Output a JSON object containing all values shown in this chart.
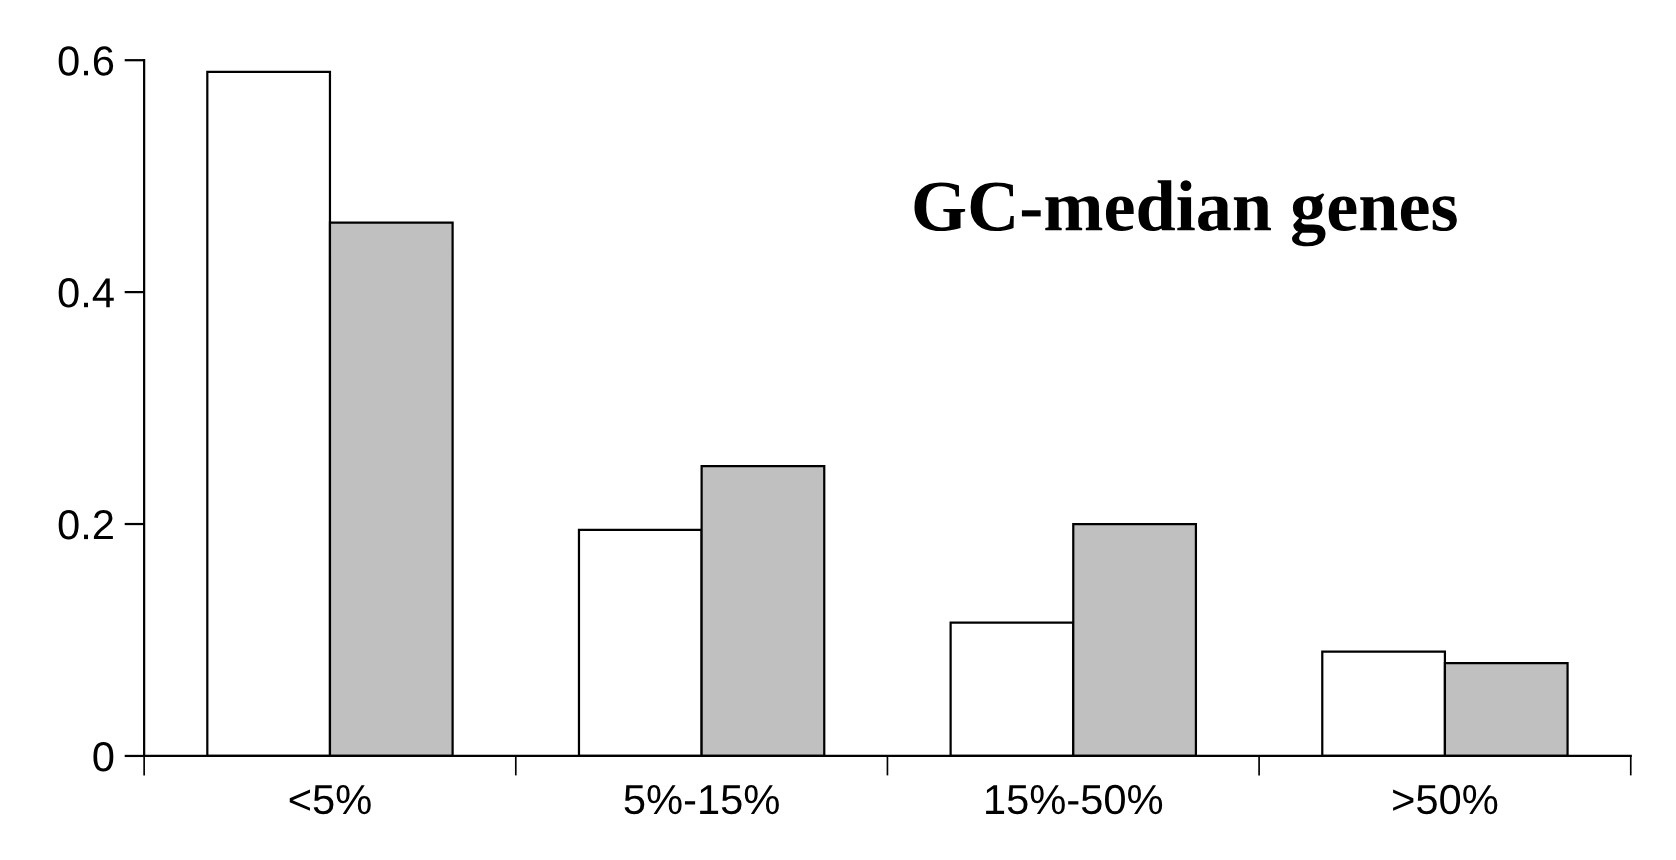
{
  "chart_data": {
    "type": "bar",
    "title": "GC-median genes",
    "categories": [
      "<5%",
      "5%-15%",
      "15%-50%",
      ">50%"
    ],
    "series": [
      {
        "color": "#ffffff",
        "values": [
          0.59,
          0.195,
          0.115,
          0.09
        ]
      },
      {
        "color": "#c0c0c0",
        "values": [
          0.46,
          0.25,
          0.2,
          0.08
        ]
      }
    ],
    "ylim": [
      0,
      0.6
    ],
    "yticks": [
      0,
      0.2,
      0.4,
      0.6
    ],
    "grid": false,
    "legend": false
  }
}
